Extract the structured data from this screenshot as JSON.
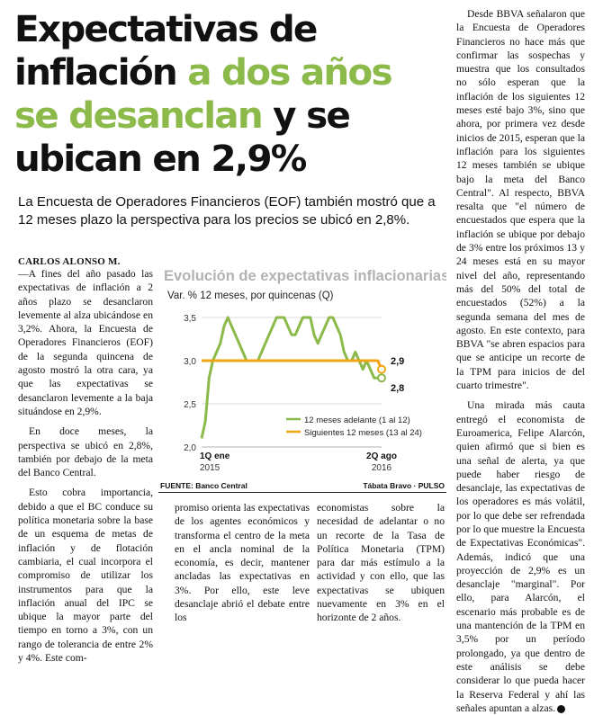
{
  "headline": {
    "line1": "Expectativas de",
    "line2_a": "inflación",
    "line2_b": "a dos años",
    "line3_a": "se desanclan",
    "line3_b": "y se",
    "line4": "ubican en 2,9%"
  },
  "deck": "La Encuesta de Operadores Financieros (EOF) también mostró que a 12 meses plazo la perspectiva para los precios se ubicó en 2,8%.",
  "byline": "CARLOS ALONSO M.",
  "body": {
    "col1_p1": "—A fines del año pasado las expectativas de inflación a 2 años plazo se desanclaron levemente al alza ubicándose en 3,2%. Ahora, la Encuesta de Operadores Financieros (EOF) de la segunda quincena de agosto mostró la otra cara, ya que las expectativas se desanclaron levemente a la baja situándose en 2,9%.",
    "col1_p2": "En doce meses, la perspectiva se ubicó en 2,8%, también por debajo de la meta del Banco Central.",
    "col1_p3": "Esto cobra importancia, debido a que el BC conduce su política monetaria sobre la base de un esquema de metas de inflación y de flotación cambiaria, el cual incorpora el compromiso de utilizar los instrumentos para que la inflación anual del IPC se ubique la mayor parte del tiempo en torno a 3%, con un rango de tolerancia de entre 2% y 4%. Este com-",
    "col2": "promiso orienta las expectativas de los agentes económicos y transforma el centro de la meta en el ancla nominal de la economía, es decir, mantener ancladas las expectativas en 3%. Por ello, este leve desanclaje abrió el debate entre los",
    "col3": "economistas sobre la necesidad de adelantar o no un recorte de la Tasa de Política Monetaria (TPM) para dar más estímulo a la actividad y con ello, que las expectativas se ubiquen nuevamente en 3% en el horizonte de 2 años.",
    "col4_p1": "Desde BBVA señalaron que la Encuesta de Operadores Financieros no hace más que confirmar las sospechas y muestra que los consultados no sólo esperan que la inflación de los siguientes 12 meses esté bajo 3%, sino que ahora, por primera vez desde inicios de 2015, esperan que la inflación para los siguientes 12 meses también se ubique bajo la meta del Banco Central\". Al respecto, BBVA resalta que \"el número de encuestados que espera que la inflación se ubique por debajo de 3% entre los próximos 13 y 24 meses está en su mayor nivel del año, representando más del 50% del total de encuestados (52%) a la segunda semana del mes de agosto. En este contexto, para BBVA \"se abren espacios para que se anticipe un recorte de la TPM para inicios de del cuarto trimestre\".",
    "col4_p2": "Una mirada más cauta entregó el economista de Euroamerica, Felipe Alarcón, quien afirmó que si bien es una señal de alerta, ya que puede haber riesgo de desanclaje, las expectativas de los operadores es más volátil, por lo que debe ser refrendada por lo que muestre la Encuesta de Expectativas Económicas\". Además, indicó que una proyección de 2,9% es un desanclaje \"marginal\". Por ello, para Alarcón, el escenario más probable es de una mantención de la TPM en 3,5% por un período prolongado, ya que dentro de este análisis se debe considerar lo que pueda hacer la Reserva Federal y ahí las señales apuntan a alzas."
  },
  "chart_data": {
    "type": "line",
    "title": "Evolución de expectativas inflacionarias",
    "subtitle": "Var. % 12 meses, por quincenas (Q)",
    "ylim": [
      2.0,
      3.6
    ],
    "yticks": [
      "3,5",
      "3,0",
      "2,5",
      "2,0"
    ],
    "xticks": [
      {
        "line1": "1Q ene",
        "line2": "2015"
      },
      {
        "line1": "2Q ago",
        "line2": "2016"
      }
    ],
    "grid": true,
    "legend_position": "bottom-right",
    "series": [
      {
        "name": "12 meses adelante (1 al 12)",
        "color": "#8cba4a",
        "values": [
          2.1,
          2.3,
          2.8,
          3.0,
          3.1,
          3.2,
          3.4,
          3.5,
          3.4,
          3.3,
          3.2,
          3.1,
          3.0,
          3.0,
          3.0,
          3.0,
          3.1,
          3.2,
          3.3,
          3.4,
          3.5,
          3.5,
          3.5,
          3.4,
          3.3,
          3.3,
          3.4,
          3.5,
          3.5,
          3.5,
          3.3,
          3.2,
          3.3,
          3.4,
          3.5,
          3.5,
          3.4,
          3.3,
          3.1,
          3.0,
          3.0,
          3.1,
          3.0,
          2.9,
          3.0,
          2.9,
          2.8,
          2.8,
          2.8
        ],
        "end_label": "2,8"
      },
      {
        "name": "Siguientes 12 meses (13 al 24)",
        "color": "#f2a413",
        "values": [
          3.0,
          3.0,
          3.0,
          3.0,
          3.0,
          3.0,
          3.0,
          3.0,
          3.0,
          3.0,
          3.0,
          3.0,
          3.0,
          3.0,
          3.0,
          3.0,
          3.0,
          3.0,
          3.0,
          3.0,
          3.0,
          3.0,
          3.0,
          3.0,
          3.0,
          3.0,
          3.0,
          3.0,
          3.0,
          3.0,
          3.0,
          3.0,
          3.0,
          3.0,
          3.0,
          3.0,
          3.0,
          3.0,
          3.0,
          3.0,
          3.0,
          3.0,
          3.0,
          3.0,
          3.0,
          3.0,
          3.0,
          3.0,
          2.9
        ],
        "end_label": "2,9"
      }
    ],
    "source": "FUENTE: Banco Central",
    "credit": "Tábata Bravo · PULSO"
  }
}
